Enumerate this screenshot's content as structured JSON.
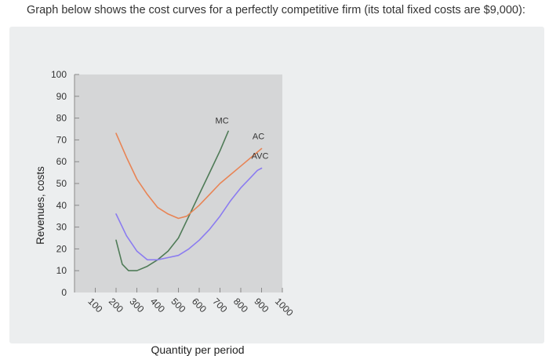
{
  "question_text": "Graph below shows the cost curves for a perfectly competitive firm (its total fixed costs are $9,000):",
  "chart_data": {
    "type": "line",
    "title": "",
    "xlabel": "Quantity per period",
    "ylabel": "Revenues, costs",
    "xlim": [
      0,
      1000
    ],
    "ylim": [
      0,
      100
    ],
    "x_ticks": [
      100,
      200,
      300,
      400,
      500,
      600,
      700,
      800,
      900,
      1000
    ],
    "y_ticks": [
      10,
      20,
      30,
      40,
      50,
      60,
      70,
      80,
      90,
      100
    ],
    "origin_label": "0",
    "grid": false,
    "series": [
      {
        "name": "MC",
        "color": "#4f7b57",
        "x": [
          200,
          230,
          260,
          300,
          350,
          400,
          450,
          500,
          550,
          600,
          650,
          700,
          740
        ],
        "y": [
          24,
          13,
          10,
          10,
          12,
          15,
          19,
          25,
          35,
          45,
          55,
          65,
          74
        ]
      },
      {
        "name": "AC",
        "color": "#e88455",
        "x": [
          200,
          250,
          300,
          350,
          400,
          450,
          500,
          540,
          600,
          650,
          700,
          750,
          800,
          850,
          900
        ],
        "y": [
          73,
          62,
          52,
          45,
          39,
          36,
          34,
          35,
          40,
          45,
          50,
          54,
          58,
          62,
          66
        ]
      },
      {
        "name": "AVC",
        "color": "#8b7cf0",
        "x": [
          200,
          250,
          300,
          350,
          400,
          450,
          500,
          550,
          600,
          650,
          700,
          750,
          800,
          850,
          880,
          900
        ],
        "y": [
          36,
          26,
          19,
          15,
          15,
          16,
          17,
          20,
          24,
          29,
          35,
          42,
          48,
          53,
          56,
          57
        ]
      }
    ]
  }
}
